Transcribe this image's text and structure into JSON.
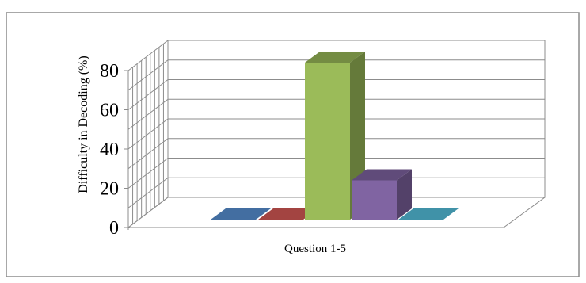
{
  "chart_data": {
    "type": "bar",
    "style": "3d-column",
    "categories": [
      "Question 1-5"
    ],
    "xlabel": "Question 1-5",
    "ylabel": "Difficulty in Decoding (%)",
    "ylim": [
      0,
      80
    ],
    "yticks": [
      "0",
      "20",
      "40",
      "60",
      "80"
    ],
    "grid": true,
    "legend": "none",
    "series": [
      {
        "values": [
          0
        ],
        "color": "#4f81bd"
      },
      {
        "values": [
          0
        ],
        "color": "#c0504d"
      },
      {
        "values": [
          80
        ],
        "color": "#9bbb59"
      },
      {
        "values": [
          20
        ],
        "color": "#8064a2"
      },
      {
        "values": [
          0
        ],
        "color": "#4bacc6"
      }
    ]
  }
}
